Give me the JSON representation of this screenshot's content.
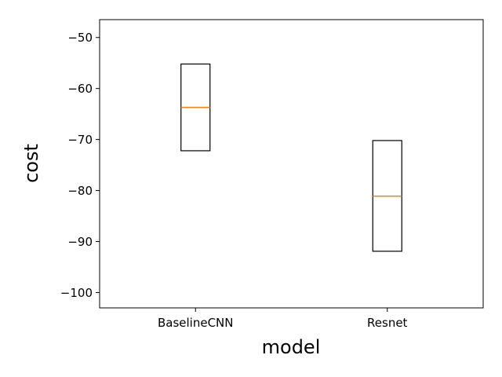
{
  "chart_data": {
    "type": "box",
    "title": "",
    "xlabel": "model",
    "ylabel": "cost",
    "ylim": [
      -103,
      -46.5
    ],
    "yticks": [
      -50,
      -60,
      -70,
      -80,
      -90,
      -100
    ],
    "ytick_labels": [
      "−50",
      "−60",
      "−70",
      "−80",
      "−90",
      "−100"
    ],
    "grid": false,
    "legend": "none",
    "categories": [
      "BaselineCNN",
      "Resnet"
    ],
    "boxes": [
      {
        "name": "BaselineCNN",
        "q1": -72.2,
        "median": -63.7,
        "q3": -55.2,
        "whisker_low": -72.2,
        "whisker_high": -55.2
      },
      {
        "name": "Resnet",
        "q1": -91.9,
        "median": -81.1,
        "q3": -70.2,
        "whisker_low": -91.9,
        "whisker_high": -70.2
      }
    ],
    "colors": {
      "box": "#000000",
      "median": "#ff7f0e",
      "axes": "#000000"
    }
  }
}
